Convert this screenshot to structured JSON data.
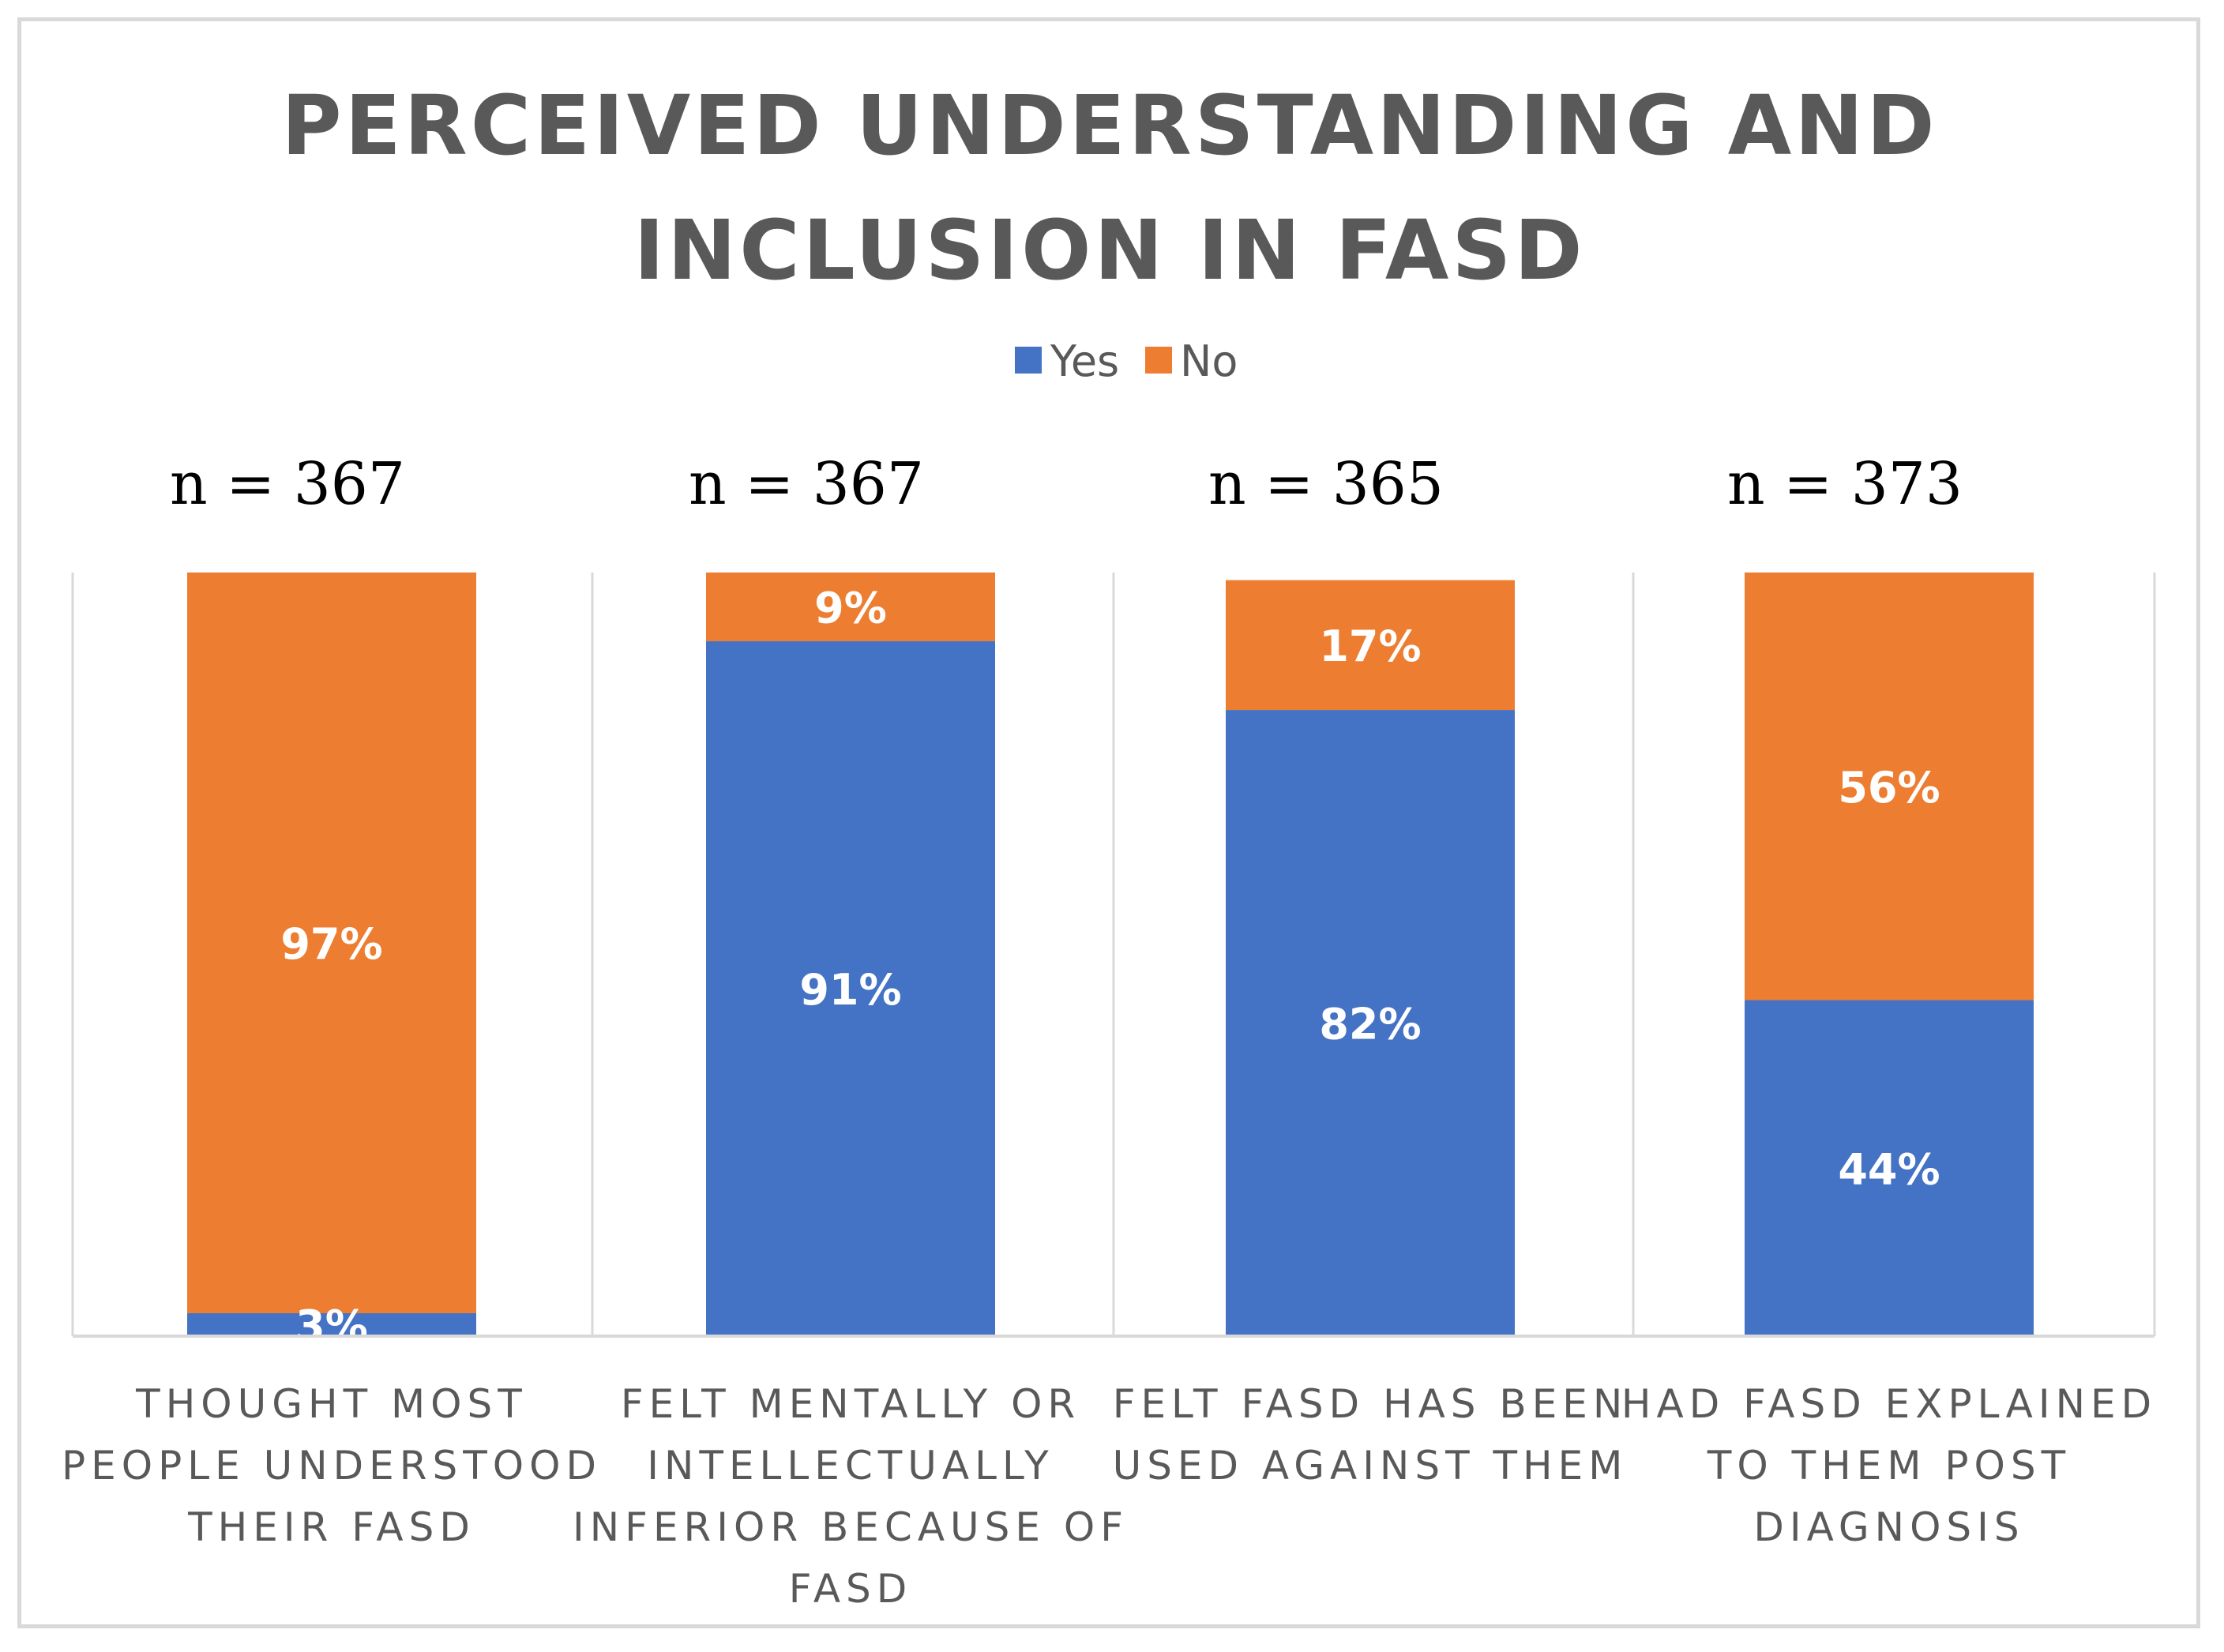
{
  "chart_data": {
    "type": "bar",
    "stacked": true,
    "percent_stacked": true,
    "title": "PERCEIVED UNDERSTANDING AND INCLUSION IN FASD",
    "title_lines": [
      "PERCEIVED UNDERSTANDING AND",
      "INCLUSION IN FASD"
    ],
    "legend_position": "top",
    "grid": false,
    "ylim": [
      0,
      100
    ],
    "categories": [
      "THOUGHT MOST PEOPLE UNDERSTOOD THEIR FASD",
      "FELT MENTALLY OR INTELLECTUALLY INFERIOR BECAUSE OF FASD",
      "FELT FASD HAS BEEN USED AGAINST THEM",
      "HAD FASD EXPLAINED TO THEM POST DIAGNOSIS"
    ],
    "category_lines": [
      [
        "THOUGHT MOST",
        "PEOPLE UNDERSTOOD",
        "THEIR FASD"
      ],
      [
        "FELT MENTALLY OR",
        "INTELLECTUALLY",
        "INFERIOR BECAUSE OF",
        "FASD"
      ],
      [
        "FELT FASD HAS BEEN",
        "USED AGAINST THEM"
      ],
      [
        "HAD FASD EXPLAINED",
        "TO THEM POST",
        "DIAGNOSIS"
      ]
    ],
    "sample_sizes": [
      "n = 367",
      "n = 367",
      "n = 365",
      "n = 373"
    ],
    "series": [
      {
        "name": "Yes",
        "color": "#4472c4",
        "values": [
          3,
          91,
          82,
          44
        ],
        "labels": [
          "3%",
          "91%",
          "82%",
          "44%"
        ]
      },
      {
        "name": "No",
        "color": "#ed7d31",
        "values": [
          97,
          9,
          17,
          56
        ],
        "labels": [
          "97%",
          "9%",
          "17%",
          "56%"
        ]
      }
    ]
  }
}
